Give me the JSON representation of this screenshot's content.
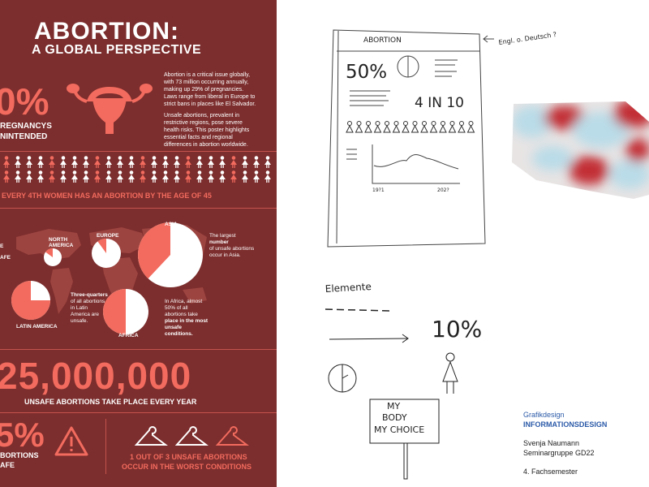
{
  "poster": {
    "title_line1": "ABORTION:",
    "title_line2": "A GLOBAL PERSPECTIVE",
    "pct_pregnancies": "0%",
    "pregnancies_label_1": "REGNANCYS",
    "pregnancies_label_2": "NINTENDED",
    "intro_1": "Abortion is a critical issue globally,",
    "intro_2": "with 73 million occurring annually,",
    "intro_3": "making up 29% of pregnancies.",
    "intro_4": "Laws range from liberal in Europe to",
    "intro_5": "strict bans in places like El Salvador.",
    "intro_6": "Unsafe abortions, prevalent in",
    "intro_7": "restrictive regions, pose severe",
    "intro_8": "health risks. This poster highlights",
    "intro_9": "essential facts and regional",
    "intro_10": "differences in abortion worldwide.",
    "every4th": "EVERY 4TH WOMEN HAS AN ABORTION BY THE AGE OF 45",
    "regions": {
      "asia": "ASIA",
      "europe": "EUROPE",
      "north_america_1": "NORTH",
      "north_america_2": "AMERICA",
      "latin_america": "LATIN AMERICA",
      "africa": "AFRICA"
    },
    "left_cut_1": "E",
    "left_cut_2": "AFE",
    "asia_note_1": "The largest",
    "asia_note_2": "number",
    "asia_note_3": "of unsafe abortions",
    "asia_note_4": "occur in Asia.",
    "latam_note_1": "Three-quarters",
    "latam_note_2": "of all abortions",
    "latam_note_3": "in Latin",
    "latam_note_4": "America are",
    "latam_note_5": "unsafe.",
    "africa_note_1": "In Africa, almost",
    "africa_note_2": "50% of all",
    "africa_note_3": "abortions take",
    "africa_note_4": "place in the most",
    "africa_note_5": "unsafe",
    "africa_note_6": "conditions.",
    "big_number": "25,000,000",
    "big_number_label": "UNSAFE ABORTIONS TAKE PLACE EVERY YEAR",
    "pct_bottom": "5%",
    "bottom_left_1": "BORTIONS",
    "bottom_left_2": "AFE",
    "one_of_three_1": "1 OUT OF 3 UNSAFE ABORTIONS",
    "one_of_three_2": "OCCUR IN THE WORST CONDITIONS",
    "colors": {
      "bg": "#7c2d2d",
      "accent": "#f26b5e",
      "pale": "#f8c2bb"
    }
  },
  "sketch": {
    "header": "ABORTION",
    "note": "Engl. o. Deutsch ?",
    "stat_50": "50%",
    "stat_4in10": "4 IN 10",
    "axis_start": "19?1",
    "axis_end": "202?",
    "elements_title": "Elemente",
    "stat_10": "10%",
    "sign_1": "MY",
    "sign_2": "BODY",
    "sign_3": "MY CHOICE"
  },
  "credits": {
    "dept": "Grafikdesign",
    "course": "INFORMATIONSDESIGN",
    "name": "Svenja Naumann",
    "group": "Seminargruppe GD22",
    "semester": "4. Fachsemester"
  }
}
